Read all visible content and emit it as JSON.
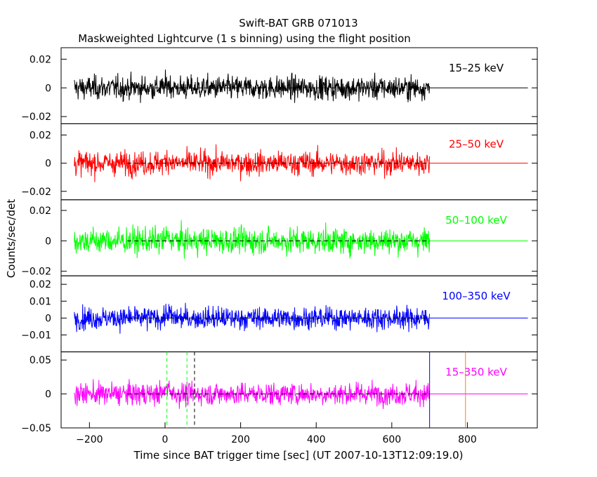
{
  "chart_data": {
    "type": "line",
    "title": "Swift-BAT GRB 071013",
    "subtitle": "Maskweighted Lightcurve (1 s binning) using the flight position",
    "xlabel": "Time since BAT trigger time [sec] (UT 2007-10-13T12:09:19.0)",
    "ylabel": "Counts/sec/det",
    "xlim": [
      -275,
      985
    ],
    "x_ticks": [
      -200,
      0,
      200,
      400,
      600,
      800
    ],
    "x_tick_labels": [
      "−200",
      "0",
      "200",
      "400",
      "600",
      "800"
    ],
    "data_range": [
      -240,
      700
    ],
    "panels": [
      {
        "name": "15-25 keV",
        "label": "15–25 keV",
        "color": "#000000",
        "ylim": [
          -0.025,
          0.028
        ],
        "y_ticks": [
          -0.02,
          0,
          0.02
        ],
        "y_tick_labels": [
          "−0.02",
          "0",
          "0.02"
        ],
        "noise_sigma": 0.0058
      },
      {
        "name": "25-50 keV",
        "label": "25–50 keV",
        "color": "#ff0000",
        "ylim": [
          -0.026,
          0.028
        ],
        "y_ticks": [
          -0.02,
          0,
          0.02
        ],
        "y_tick_labels": [
          "−0.02",
          "0",
          "0.02"
        ],
        "noise_sigma": 0.006
      },
      {
        "name": "50-100 keV",
        "label": "50–100 keV",
        "color": "#00ff00",
        "ylim": [
          -0.023,
          0.027
        ],
        "y_ticks": [
          -0.02,
          0,
          0.02
        ],
        "y_tick_labels": [
          "−0.02",
          "0",
          "0.02"
        ],
        "noise_sigma": 0.006
      },
      {
        "name": "100-350 keV",
        "label": "100–350 keV",
        "color": "#0000ff",
        "ylim": [
          -0.02,
          0.025
        ],
        "y_ticks": [
          -0.01,
          0,
          0.01,
          0.02
        ],
        "y_tick_labels": [
          "−0.01",
          "0",
          "0.01",
          "0.02"
        ],
        "noise_sigma": 0.0046
      },
      {
        "name": "15-350 keV",
        "label": "15–350 keV",
        "color": "#ff00ff",
        "ylim": [
          -0.05,
          0.062
        ],
        "y_ticks": [
          -0.05,
          0,
          0.05
        ],
        "y_tick_labels": [
          "−0.05",
          "0",
          "0.05"
        ],
        "noise_sigma": 0.0115
      }
    ],
    "markers": [
      {
        "name": "green-dashed-marker-1",
        "x": 5,
        "color": "#00ff00",
        "style": "dashed"
      },
      {
        "name": "green-dashed-marker-2",
        "x": 58,
        "color": "#00ff00",
        "style": "dashed"
      },
      {
        "name": "black-dashed-marker",
        "x": 78,
        "color": "#000000",
        "style": "dashed"
      },
      {
        "name": "blue-solid-marker",
        "x": 700,
        "color": "#0000ff",
        "style": "solid"
      },
      {
        "name": "orange-solid-marker",
        "x": 795,
        "color": "#ff8000",
        "style": "solid"
      }
    ]
  }
}
